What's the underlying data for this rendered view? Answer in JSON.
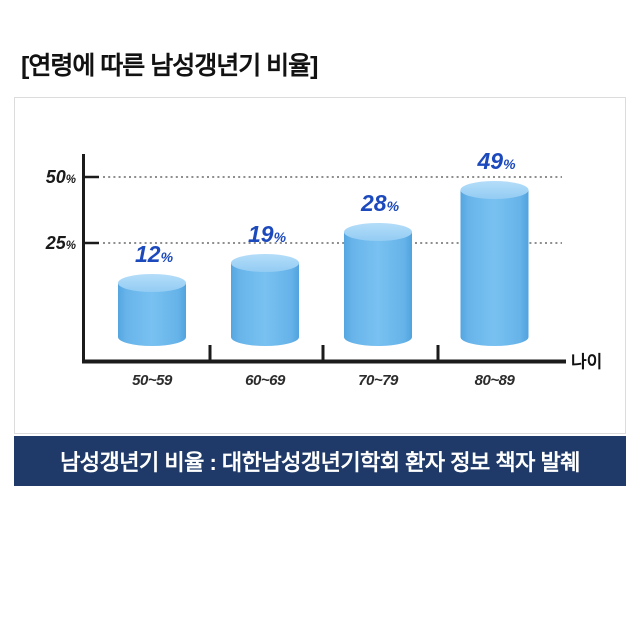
{
  "page_title": "[연령에 따른 남성갱년기 비율]",
  "chart_data": {
    "type": "bar",
    "title": "연령에 따른 남성갱년기 비율",
    "categories": [
      "50~59",
      "60~69",
      "70~79",
      "80~89"
    ],
    "values": [
      12,
      19,
      28,
      49
    ],
    "value_suffix": "%",
    "xlabel": "나이",
    "ylabel": "",
    "yticks": [
      25,
      50
    ],
    "ytick_suffix": "%",
    "ylim": [
      0,
      58
    ],
    "grid": "dotted horizontal lines at yticks",
    "legend": "none",
    "bar_style": "3d-cylinder",
    "bar_color": "#68b4ea",
    "bar_top_color": "#a5d5f6",
    "value_label_color": "#1c4abc",
    "axis_color": "#1b1b1b"
  },
  "footer": {
    "text": "남성갱년기 비율 : 대한남성갱년기학회 환자 정보 책자 발췌",
    "background": "#1f3a68",
    "text_color": "#ffffff"
  }
}
